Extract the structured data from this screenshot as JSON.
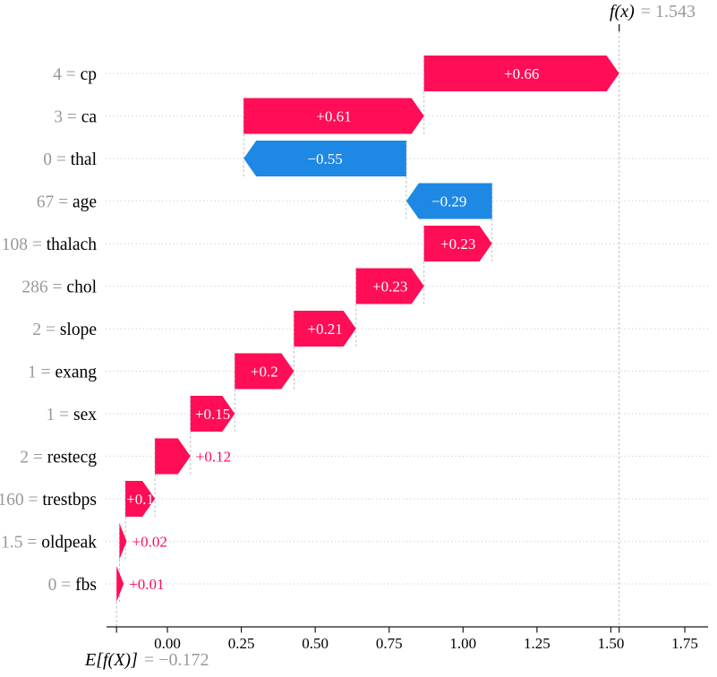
{
  "colors": {
    "positive": "#ff0d57",
    "negative": "#1e88e5",
    "bar_label_inside": "#ffffff",
    "muted_text": "#999999",
    "label_text": "#000000",
    "row_dotted_grid": "#cccccc",
    "connector_dashed": "#bdbdbd",
    "axis": "#1a1a1a"
  },
  "annotations": {
    "fx": {
      "name": "f(x)",
      "suffix": "= 1.543"
    },
    "ef": {
      "name": "E[f(X)]",
      "suffix": "= −0.172"
    }
  },
  "chart_data": {
    "type": "bar",
    "variant": "shap-waterfall",
    "orientation": "horizontal",
    "title": "",
    "xlabel": "",
    "ylabel": "",
    "base_value": -0.172,
    "final_value": 1.543,
    "xlim": [
      -0.206,
      1.829
    ],
    "grid": "dotted-horizontal-rows",
    "x_ticks": [
      {
        "value": 0.0,
        "label": "0.00"
      },
      {
        "value": 0.25,
        "label": "0.25"
      },
      {
        "value": 0.5,
        "label": "0.50"
      },
      {
        "value": 0.75,
        "label": "0.75"
      },
      {
        "value": 1.0,
        "label": "1.00"
      },
      {
        "value": 1.25,
        "label": "1.25"
      },
      {
        "value": 1.5,
        "label": "1.50"
      },
      {
        "value": 1.75,
        "label": "1.75"
      }
    ],
    "feature_label_separator": " = ",
    "features": [
      {
        "feature": "cp",
        "data_value": "4",
        "shap_value": 0.66,
        "shap_label": "+0.66",
        "direction": "positive",
        "label_inside": true
      },
      {
        "feature": "ca",
        "data_value": "3",
        "shap_value": 0.61,
        "shap_label": "+0.61",
        "direction": "positive",
        "label_inside": true
      },
      {
        "feature": "thal",
        "data_value": "0",
        "shap_value": -0.55,
        "shap_label": "−0.55",
        "direction": "negative",
        "label_inside": true
      },
      {
        "feature": "age",
        "data_value": "67",
        "shap_value": -0.29,
        "shap_label": "−0.29",
        "direction": "negative",
        "label_inside": true
      },
      {
        "feature": "thalach",
        "data_value": "108",
        "shap_value": 0.23,
        "shap_label": "+0.23",
        "direction": "positive",
        "label_inside": true
      },
      {
        "feature": "chol",
        "data_value": "286",
        "shap_value": 0.23,
        "shap_label": "+0.23",
        "direction": "positive",
        "label_inside": true
      },
      {
        "feature": "slope",
        "data_value": "2",
        "shap_value": 0.21,
        "shap_label": "+0.21",
        "direction": "positive",
        "label_inside": true
      },
      {
        "feature": "exang",
        "data_value": "1",
        "shap_value": 0.2,
        "shap_label": "+0.2",
        "direction": "positive",
        "label_inside": true
      },
      {
        "feature": "sex",
        "data_value": "1",
        "shap_value": 0.15,
        "shap_label": "+0.15",
        "direction": "positive",
        "label_inside": true
      },
      {
        "feature": "restecg",
        "data_value": "2",
        "shap_value": 0.12,
        "shap_label": "+0.12",
        "direction": "positive",
        "label_inside": false
      },
      {
        "feature": "trestbps",
        "data_value": "160",
        "shap_value": 0.1,
        "shap_label": "+0.1",
        "direction": "positive",
        "label_inside": true
      },
      {
        "feature": "oldpeak",
        "data_value": "1.5",
        "shap_value": 0.02,
        "shap_label": "+0.02",
        "direction": "positive",
        "label_inside": false
      },
      {
        "feature": "fbs",
        "data_value": "0",
        "shap_value": 0.01,
        "shap_label": "+0.01",
        "direction": "positive",
        "label_inside": false
      }
    ]
  }
}
